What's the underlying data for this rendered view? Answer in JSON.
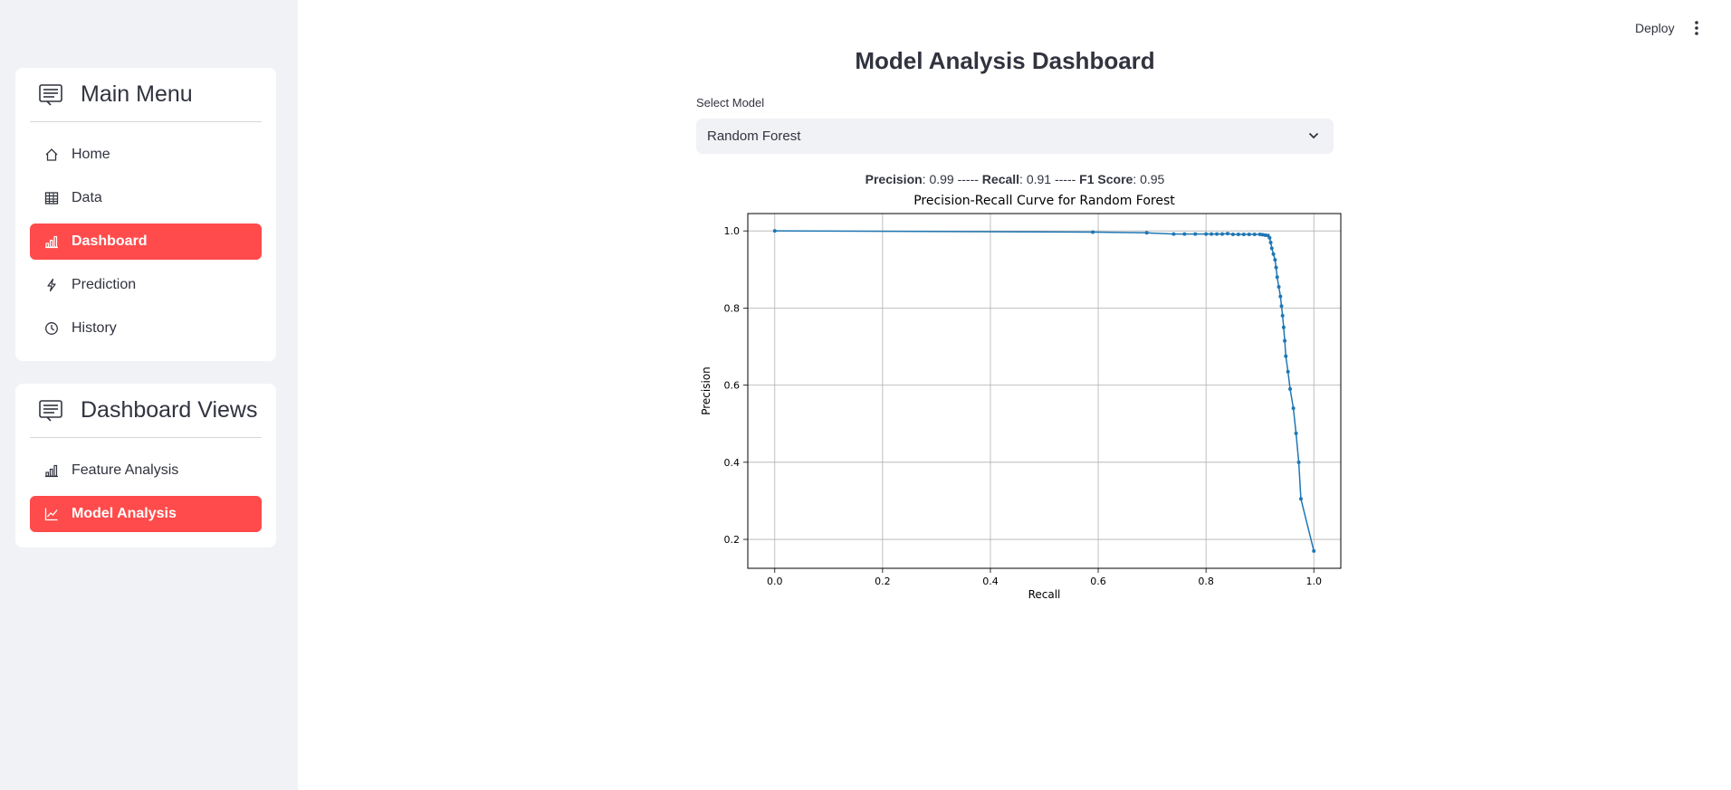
{
  "sidebar": {
    "main_menu": {
      "title": "Main Menu",
      "items": [
        {
          "label": "Home",
          "icon": "house-icon",
          "active": false
        },
        {
          "label": "Data",
          "icon": "table-icon",
          "active": false
        },
        {
          "label": "Dashboard",
          "icon": "bar-chart-icon",
          "active": true
        },
        {
          "label": "Prediction",
          "icon": "lightning-icon",
          "active": false
        },
        {
          "label": "History",
          "icon": "clock-icon",
          "active": false
        }
      ]
    },
    "dashboard_views": {
      "title": "Dashboard Views",
      "items": [
        {
          "label": "Feature Analysis",
          "icon": "bar-chart-icon",
          "active": false
        },
        {
          "label": "Model Analysis",
          "icon": "line-chart-icon",
          "active": true
        }
      ]
    },
    "accent_color": "#ff4b4b"
  },
  "header": {
    "deploy_label": "Deploy"
  },
  "main": {
    "title": "Model Analysis Dashboard",
    "select": {
      "label": "Select Model",
      "value": "Random Forest"
    },
    "metrics": {
      "precision_label": "Precision",
      "precision_value": ": 0.99 ----- ",
      "recall_label": "Recall",
      "recall_value": ": 0.91 ----- ",
      "f1_label": "F1 Score",
      "f1_value": ": 0.95"
    }
  },
  "chart_data": {
    "type": "line",
    "title": "Precision-Recall Curve for Random Forest",
    "xlabel": "Recall",
    "ylabel": "Precision",
    "xlim": [
      -0.05,
      1.05
    ],
    "ylim": [
      0.125,
      1.045
    ],
    "xticks": [
      "0.0",
      "0.2",
      "0.4",
      "0.6",
      "0.8",
      "1.0"
    ],
    "yticks": [
      "0.2",
      "0.4",
      "0.6",
      "0.8",
      "1.0"
    ],
    "grid": true,
    "color": "#1f77b4",
    "series": [
      {
        "x": [
          0.0,
          0.59,
          0.69,
          0.74,
          0.76,
          0.78,
          0.8,
          0.81,
          0.82,
          0.83,
          0.84,
          0.85,
          0.86,
          0.87,
          0.88,
          0.89,
          0.9,
          0.905,
          0.91,
          0.915,
          0.918,
          0.92,
          0.922,
          0.925,
          0.928,
          0.93,
          0.932,
          0.935,
          0.938,
          0.94,
          0.942,
          0.944,
          0.946,
          0.948,
          0.952,
          0.956,
          0.962,
          0.967,
          0.972,
          0.976,
          1.0
        ],
        "y": [
          1.0,
          0.997,
          0.995,
          0.992,
          0.992,
          0.992,
          0.992,
          0.992,
          0.992,
          0.992,
          0.993,
          0.991,
          0.991,
          0.991,
          0.991,
          0.991,
          0.991,
          0.99,
          0.989,
          0.988,
          0.982,
          0.97,
          0.955,
          0.94,
          0.925,
          0.905,
          0.88,
          0.855,
          0.83,
          0.805,
          0.78,
          0.75,
          0.715,
          0.675,
          0.635,
          0.59,
          0.54,
          0.475,
          0.4,
          0.305,
          0.17
        ]
      }
    ]
  }
}
